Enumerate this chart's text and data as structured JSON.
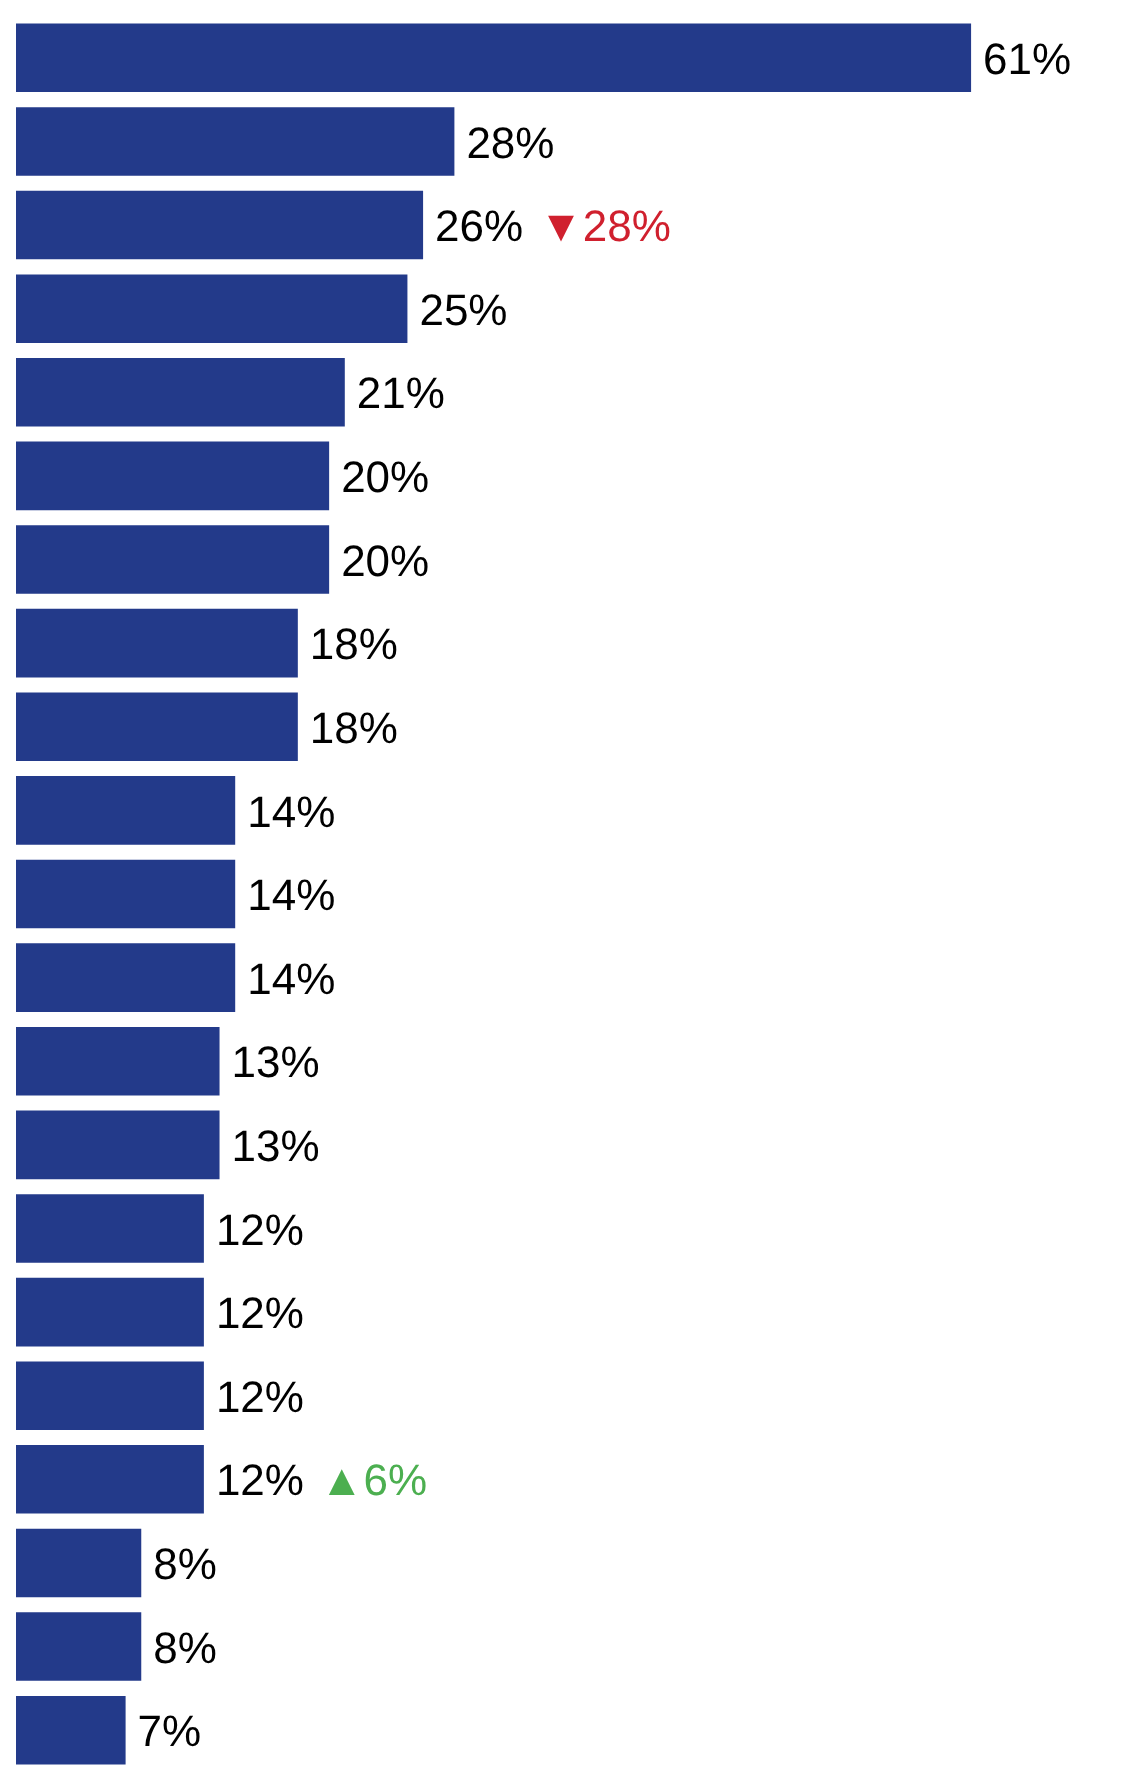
{
  "chart_data": {
    "type": "bar",
    "orientation": "horizontal",
    "categories": [
      null,
      null,
      null,
      null,
      null,
      null,
      null,
      null,
      null,
      null,
      null,
      null,
      null,
      null,
      null,
      null,
      null,
      null,
      null,
      null,
      null
    ],
    "values": [
      61,
      28,
      26,
      25,
      21,
      20,
      20,
      18,
      18,
      14,
      14,
      14,
      13,
      13,
      12,
      12,
      12,
      12,
      8,
      8,
      7
    ],
    "color": "#233a8a",
    "tick_labels": false,
    "value_labels": [
      "61%",
      "28%",
      "26%",
      "25%",
      "21%",
      "20%",
      "20%",
      "18%",
      "18%",
      "14%",
      "14%",
      "14%",
      "13%",
      "13%",
      "12%",
      "12%",
      "12%",
      "12%",
      "8%",
      "8%",
      "7%"
    ],
    "annotations": [
      {
        "text": "▼28%",
        "x": 26
      },
      {
        "text": "▲6%",
        "x": 12
      }
    ]
  }
}
